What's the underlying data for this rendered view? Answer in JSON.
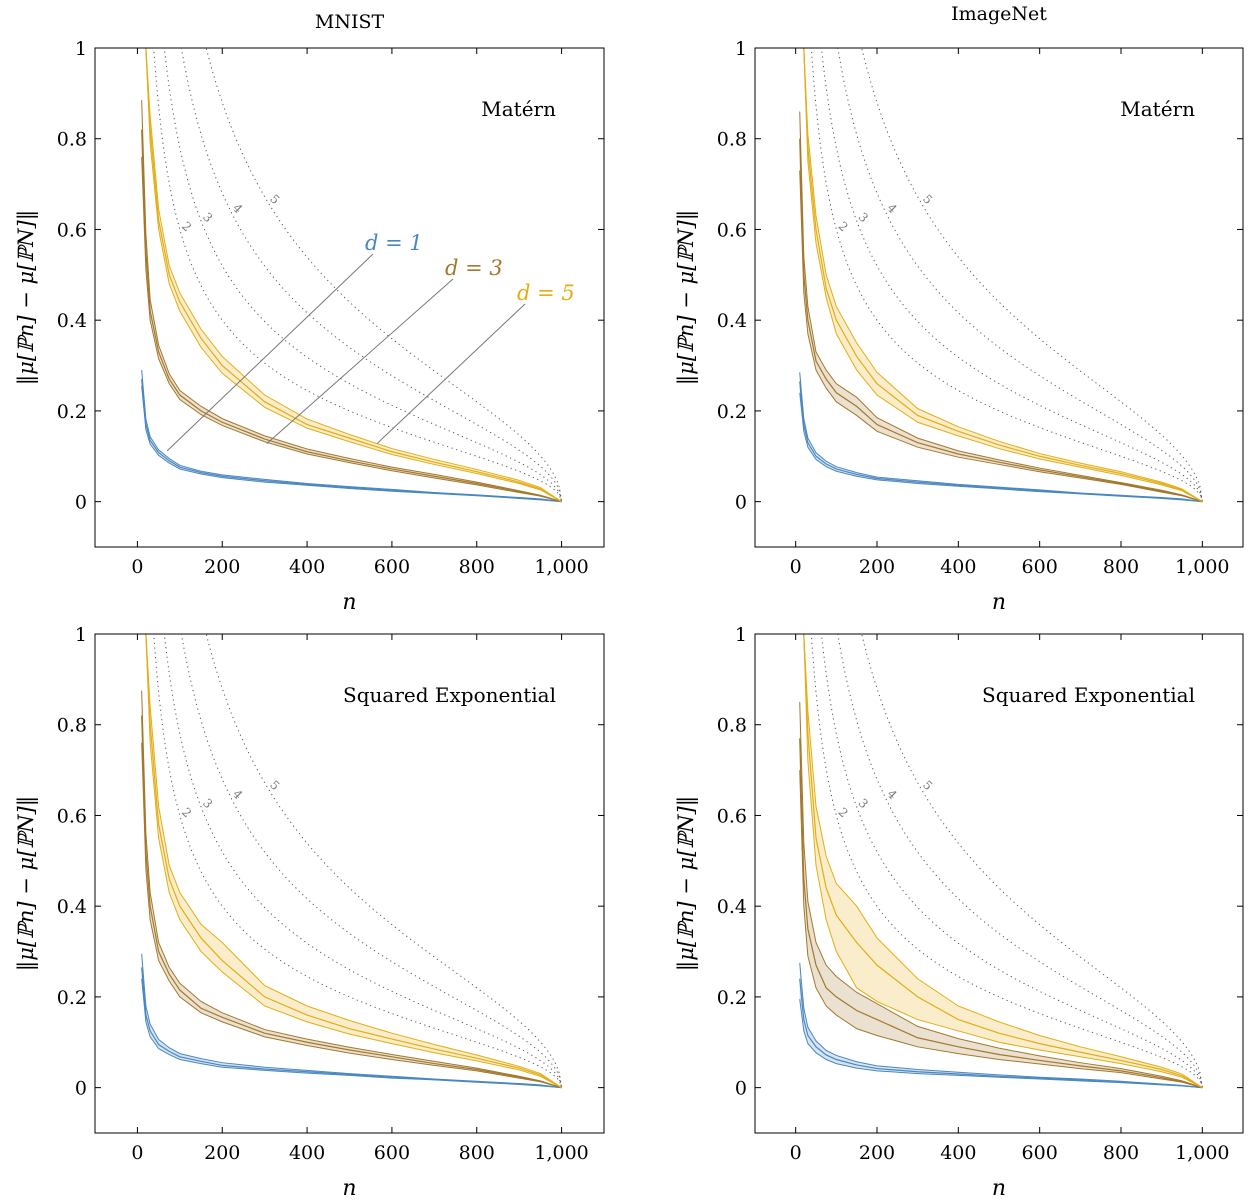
{
  "figure": {
    "columns": [
      "MNIST",
      "ImageNet"
    ],
    "colors": {
      "d1": "#4a87c1",
      "d3": "#a3782c",
      "d5": "#e4ad12",
      "reference": "#555555",
      "callout": "#777777"
    },
    "legend_annotations": [
      {
        "series": "d1",
        "text": "d = 1"
      },
      {
        "series": "d3",
        "text": "d = 3"
      },
      {
        "series": "d5",
        "text": "d = 5"
      }
    ],
    "reference_curve_labels": [
      "2",
      "3",
      "4",
      "5"
    ]
  },
  "chart_data": [
    {
      "type": "line",
      "title": "MNIST",
      "annotation": "Matérn",
      "xlabel": "n",
      "ylabel": "‖μ[ℙn] − μ[ℙN]‖",
      "xlim": [
        -100,
        1100
      ],
      "ylim": [
        -0.1,
        1
      ],
      "xticks": [
        0,
        200,
        400,
        600,
        800,
        1000
      ],
      "xtick_labels": [
        "0",
        "200",
        "400",
        "600",
        "800",
        "1,000"
      ],
      "yticks": [
        0,
        0.2,
        0.4,
        0.6,
        0.8,
        1
      ],
      "ytick_labels": [
        "0",
        "0.2",
        "0.4",
        "0.6",
        "0.8",
        "1"
      ],
      "x": [
        10,
        20,
        30,
        50,
        75,
        100,
        150,
        200,
        300,
        400,
        500,
        600,
        700,
        800,
        900,
        950,
        1000
      ],
      "series": [
        {
          "name": "d = 1",
          "color": "d1",
          "values": [
            0.27,
            0.17,
            0.135,
            0.108,
            0.09,
            0.076,
            0.064,
            0.056,
            0.046,
            0.038,
            0.031,
            0.025,
            0.019,
            0.014,
            0.008,
            0.005,
            0.0
          ],
          "lower": [
            0.255,
            0.158,
            0.127,
            0.102,
            0.085,
            0.072,
            0.061,
            0.053,
            0.043,
            0.036,
            0.029,
            0.023,
            0.018,
            0.013,
            0.007,
            0.004,
            0.0
          ],
          "upper": [
            0.29,
            0.182,
            0.143,
            0.114,
            0.095,
            0.08,
            0.067,
            0.059,
            0.049,
            0.04,
            0.033,
            0.027,
            0.02,
            0.015,
            0.009,
            0.006,
            0.0
          ]
        },
        {
          "name": "d = 3",
          "color": "d3",
          "values": [
            0.82,
            0.55,
            0.42,
            0.33,
            0.27,
            0.235,
            0.2,
            0.175,
            0.138,
            0.11,
            0.09,
            0.072,
            0.056,
            0.04,
            0.022,
            0.013,
            0.0
          ],
          "lower": [
            0.76,
            0.51,
            0.4,
            0.315,
            0.26,
            0.225,
            0.192,
            0.168,
            0.132,
            0.105,
            0.086,
            0.068,
            0.052,
            0.037,
            0.02,
            0.012,
            0.0
          ],
          "upper": [
            0.885,
            0.59,
            0.445,
            0.345,
            0.282,
            0.245,
            0.21,
            0.183,
            0.145,
            0.116,
            0.095,
            0.076,
            0.06,
            0.043,
            0.024,
            0.014,
            0.0
          ],
          "annotation_x": 300
        },
        {
          "name": "d = 5",
          "color": "d5",
          "values": [
            1.3,
            1.0,
            0.82,
            0.62,
            0.5,
            0.44,
            0.36,
            0.3,
            0.22,
            0.17,
            0.14,
            0.11,
            0.087,
            0.066,
            0.043,
            0.028,
            0.0
          ],
          "lower": [
            1.3,
            1.0,
            0.79,
            0.6,
            0.48,
            0.42,
            0.34,
            0.283,
            0.208,
            0.162,
            0.132,
            0.104,
            0.082,
            0.062,
            0.04,
            0.026,
            0.0
          ],
          "upper": [
            1.3,
            1.0,
            0.85,
            0.645,
            0.52,
            0.46,
            0.38,
            0.32,
            0.235,
            0.182,
            0.148,
            0.117,
            0.093,
            0.071,
            0.047,
            0.031,
            0.0
          ],
          "annotation_x": 560
        }
      ],
      "reference_curves": [
        {
          "label": "2",
          "c": 0.2
        },
        {
          "label": "3",
          "c": 0.26
        },
        {
          "label": "4",
          "c": 0.34
        },
        {
          "label": "5",
          "c": 0.44
        }
      ]
    },
    {
      "type": "line",
      "title": "ImageNet",
      "annotation": "Matérn",
      "xlabel": "n",
      "ylabel": "‖μ[ℙn] − μ[ℙN]‖",
      "xlim": [
        -100,
        1100
      ],
      "ylim": [
        -0.1,
        1
      ],
      "xticks": [
        0,
        200,
        400,
        600,
        800,
        1000
      ],
      "xtick_labels": [
        "0",
        "200",
        "400",
        "600",
        "800",
        "1,000"
      ],
      "yticks": [
        0,
        0.2,
        0.4,
        0.6,
        0.8,
        1
      ],
      "ytick_labels": [
        "0",
        "0.2",
        "0.4",
        "0.6",
        "0.8",
        "1"
      ],
      "x": [
        10,
        20,
        30,
        50,
        75,
        100,
        150,
        200,
        300,
        400,
        500,
        600,
        700,
        800,
        900,
        950,
        1000
      ],
      "series": [
        {
          "name": "d = 1",
          "color": "d1",
          "values": [
            0.265,
            0.17,
            0.13,
            0.1,
            0.083,
            0.072,
            0.06,
            0.051,
            0.043,
            0.036,
            0.03,
            0.024,
            0.018,
            0.013,
            0.008,
            0.005,
            0.0
          ],
          "lower": [
            0.24,
            0.155,
            0.12,
            0.093,
            0.077,
            0.067,
            0.056,
            0.048,
            0.04,
            0.034,
            0.028,
            0.022,
            0.017,
            0.012,
            0.007,
            0.004,
            0.0
          ],
          "upper": [
            0.285,
            0.183,
            0.14,
            0.108,
            0.089,
            0.077,
            0.064,
            0.054,
            0.046,
            0.038,
            0.032,
            0.026,
            0.019,
            0.014,
            0.009,
            0.006,
            0.0
          ]
        },
        {
          "name": "d = 3",
          "color": "d3",
          "values": [
            0.8,
            0.5,
            0.4,
            0.31,
            0.27,
            0.24,
            0.21,
            0.17,
            0.13,
            0.105,
            0.087,
            0.07,
            0.055,
            0.04,
            0.023,
            0.014,
            0.0
          ],
          "lower": [
            0.73,
            0.46,
            0.37,
            0.29,
            0.25,
            0.22,
            0.19,
            0.155,
            0.12,
            0.098,
            0.082,
            0.066,
            0.052,
            0.038,
            0.021,
            0.013,
            0.0
          ],
          "upper": [
            0.86,
            0.54,
            0.43,
            0.33,
            0.29,
            0.26,
            0.23,
            0.185,
            0.14,
            0.112,
            0.092,
            0.074,
            0.058,
            0.042,
            0.025,
            0.015,
            0.0
          ]
        },
        {
          "name": "d = 5",
          "color": "d5",
          "values": [
            1.3,
            1.0,
            0.78,
            0.6,
            0.47,
            0.4,
            0.32,
            0.26,
            0.19,
            0.155,
            0.125,
            0.1,
            0.08,
            0.062,
            0.04,
            0.026,
            0.0
          ],
          "lower": [
            1.3,
            1.0,
            0.75,
            0.57,
            0.45,
            0.37,
            0.29,
            0.235,
            0.175,
            0.145,
            0.117,
            0.094,
            0.076,
            0.058,
            0.037,
            0.024,
            0.0
          ],
          "upper": [
            1.3,
            1.0,
            0.81,
            0.63,
            0.5,
            0.43,
            0.35,
            0.285,
            0.205,
            0.165,
            0.133,
            0.106,
            0.085,
            0.066,
            0.043,
            0.028,
            0.0
          ]
        }
      ],
      "reference_curves": [
        {
          "label": "2",
          "c": 0.2
        },
        {
          "label": "3",
          "c": 0.26
        },
        {
          "label": "4",
          "c": 0.34
        },
        {
          "label": "5",
          "c": 0.44
        }
      ]
    },
    {
      "type": "line",
      "title": "",
      "annotation": "Squared Exponential",
      "xlabel": "n",
      "ylabel": "‖μ[ℙn] − μ[ℙN]‖",
      "xlim": [
        -100,
        1100
      ],
      "ylim": [
        -0.1,
        1
      ],
      "xticks": [
        0,
        200,
        400,
        600,
        800,
        1000
      ],
      "xtick_labels": [
        "0",
        "200",
        "400",
        "600",
        "800",
        "1,000"
      ],
      "yticks": [
        0,
        0.2,
        0.4,
        0.6,
        0.8,
        1
      ],
      "ytick_labels": [
        "0",
        "0.2",
        "0.4",
        "0.6",
        "0.8",
        "1"
      ],
      "x": [
        10,
        20,
        30,
        50,
        75,
        100,
        150,
        200,
        300,
        400,
        500,
        600,
        700,
        800,
        900,
        950,
        1000
      ],
      "series": [
        {
          "name": "d = 1",
          "color": "d1",
          "values": [
            0.265,
            0.16,
            0.125,
            0.095,
            0.08,
            0.068,
            0.058,
            0.049,
            0.041,
            0.035,
            0.029,
            0.023,
            0.018,
            0.013,
            0.008,
            0.005,
            0.0
          ],
          "lower": [
            0.24,
            0.145,
            0.112,
            0.086,
            0.073,
            0.062,
            0.053,
            0.045,
            0.038,
            0.032,
            0.027,
            0.021,
            0.017,
            0.012,
            0.007,
            0.004,
            0.0
          ],
          "upper": [
            0.295,
            0.18,
            0.14,
            0.106,
            0.088,
            0.075,
            0.064,
            0.055,
            0.045,
            0.038,
            0.031,
            0.025,
            0.019,
            0.014,
            0.009,
            0.006,
            0.0
          ]
        },
        {
          "name": "d = 3",
          "color": "d3",
          "values": [
            0.82,
            0.52,
            0.4,
            0.3,
            0.25,
            0.215,
            0.175,
            0.155,
            0.12,
            0.1,
            0.083,
            0.068,
            0.053,
            0.04,
            0.023,
            0.014,
            0.0
          ],
          "lower": [
            0.76,
            0.48,
            0.37,
            0.28,
            0.235,
            0.2,
            0.165,
            0.145,
            0.112,
            0.093,
            0.076,
            0.062,
            0.049,
            0.037,
            0.021,
            0.013,
            0.0
          ],
          "upper": [
            0.875,
            0.56,
            0.43,
            0.32,
            0.265,
            0.23,
            0.19,
            0.165,
            0.128,
            0.107,
            0.089,
            0.073,
            0.058,
            0.043,
            0.025,
            0.015,
            0.0
          ]
        },
        {
          "name": "d = 5",
          "color": "d5",
          "values": [
            1.3,
            1.0,
            0.8,
            0.58,
            0.46,
            0.4,
            0.33,
            0.28,
            0.2,
            0.16,
            0.13,
            0.107,
            0.085,
            0.065,
            0.043,
            0.028,
            0.0
          ],
          "lower": [
            1.3,
            1.0,
            0.76,
            0.55,
            0.43,
            0.37,
            0.3,
            0.255,
            0.18,
            0.145,
            0.118,
            0.097,
            0.077,
            0.059,
            0.039,
            0.025,
            0.0
          ],
          "upper": [
            1.3,
            1.0,
            0.84,
            0.62,
            0.49,
            0.43,
            0.36,
            0.32,
            0.225,
            0.18,
            0.148,
            0.12,
            0.095,
            0.072,
            0.047,
            0.031,
            0.0
          ]
        }
      ],
      "reference_curves": [
        {
          "label": "2",
          "c": 0.2
        },
        {
          "label": "3",
          "c": 0.26
        },
        {
          "label": "4",
          "c": 0.34
        },
        {
          "label": "5",
          "c": 0.44
        }
      ]
    },
    {
      "type": "line",
      "title": "",
      "annotation": "Squared Exponential",
      "xlabel": "n",
      "ylabel": "‖μ[ℙn] − μ[ℙN]‖",
      "xlim": [
        -100,
        1100
      ],
      "ylim": [
        -0.1,
        1
      ],
      "xticks": [
        0,
        200,
        400,
        600,
        800,
        1000
      ],
      "xtick_labels": [
        "0",
        "200",
        "400",
        "600",
        "800",
        "1,000"
      ],
      "yticks": [
        0,
        0.2,
        0.4,
        0.6,
        0.8,
        1
      ],
      "ytick_labels": [
        "0",
        "0.2",
        "0.4",
        "0.6",
        "0.8",
        "1"
      ],
      "x": [
        10,
        20,
        30,
        50,
        75,
        100,
        150,
        200,
        300,
        400,
        500,
        600,
        700,
        800,
        900,
        950,
        1000
      ],
      "series": [
        {
          "name": "d = 1",
          "color": "d1",
          "values": [
            0.24,
            0.15,
            0.115,
            0.09,
            0.072,
            0.062,
            0.05,
            0.042,
            0.035,
            0.03,
            0.025,
            0.021,
            0.017,
            0.012,
            0.007,
            0.004,
            0.0
          ],
          "lower": [
            0.195,
            0.125,
            0.097,
            0.077,
            0.062,
            0.053,
            0.043,
            0.037,
            0.031,
            0.027,
            0.023,
            0.019,
            0.015,
            0.011,
            0.006,
            0.004,
            0.0
          ],
          "upper": [
            0.275,
            0.175,
            0.133,
            0.103,
            0.082,
            0.071,
            0.057,
            0.048,
            0.04,
            0.034,
            0.028,
            0.023,
            0.019,
            0.014,
            0.008,
            0.005,
            0.0
          ]
        },
        {
          "name": "d = 3",
          "color": "d3",
          "values": [
            0.77,
            0.46,
            0.35,
            0.27,
            0.22,
            0.2,
            0.17,
            0.15,
            0.11,
            0.09,
            0.073,
            0.06,
            0.048,
            0.037,
            0.022,
            0.013,
            0.0
          ],
          "lower": [
            0.7,
            0.4,
            0.29,
            0.22,
            0.18,
            0.16,
            0.13,
            0.115,
            0.09,
            0.075,
            0.062,
            0.052,
            0.042,
            0.033,
            0.019,
            0.012,
            0.0
          ],
          "upper": [
            0.85,
            0.54,
            0.41,
            0.32,
            0.27,
            0.245,
            0.21,
            0.185,
            0.135,
            0.108,
            0.087,
            0.07,
            0.055,
            0.042,
            0.025,
            0.015,
            0.0
          ]
        },
        {
          "name": "d = 5",
          "color": "d5",
          "values": [
            1.3,
            1.0,
            0.78,
            0.55,
            0.44,
            0.38,
            0.32,
            0.27,
            0.2,
            0.15,
            0.12,
            0.097,
            0.078,
            0.06,
            0.04,
            0.026,
            0.0
          ],
          "lower": [
            1.3,
            1.0,
            0.72,
            0.49,
            0.37,
            0.3,
            0.22,
            0.19,
            0.15,
            0.125,
            0.1,
            0.083,
            0.068,
            0.053,
            0.035,
            0.023,
            0.0
          ],
          "upper": [
            1.3,
            1.0,
            0.83,
            0.62,
            0.51,
            0.45,
            0.4,
            0.33,
            0.24,
            0.18,
            0.145,
            0.115,
            0.09,
            0.068,
            0.045,
            0.03,
            0.0
          ]
        }
      ],
      "reference_curves": [
        {
          "label": "2",
          "c": 0.2
        },
        {
          "label": "3",
          "c": 0.26
        },
        {
          "label": "4",
          "c": 0.34
        },
        {
          "label": "5",
          "c": 0.44
        }
      ]
    }
  ]
}
